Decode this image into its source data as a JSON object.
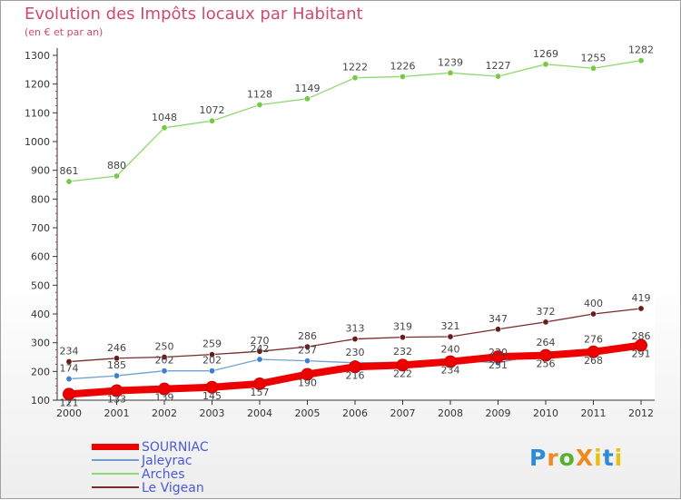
{
  "chart_data": {
    "type": "line",
    "title": "Evolution des Impôts locaux par Habitant",
    "subtitle": "(en € et par an)",
    "xlabel": "",
    "ylabel": "",
    "ylim": [
      100,
      1300
    ],
    "yticks": [
      100,
      200,
      300,
      400,
      500,
      600,
      700,
      800,
      900,
      1000,
      1100,
      1200,
      1300
    ],
    "grid": false,
    "legend_position": "bottom-left",
    "x": [
      "2000",
      "2001",
      "2002",
      "2003",
      "2004",
      "2005",
      "2006",
      "2007",
      "2008",
      "2009",
      "2010",
      "2011",
      "2012"
    ],
    "series": [
      {
        "name": "SOURNIAC",
        "color": "#ee0000",
        "marker": "#ee0000",
        "values": [
          121,
          133,
          139,
          145,
          157,
          190,
          216,
          222,
          234,
          251,
          256,
          268,
          291
        ]
      },
      {
        "name": "Jaleyrac",
        "color": "#6fa0d0",
        "marker": "#3f7fd0",
        "values": [
          174,
          185,
          202,
          202,
          242,
          237,
          230,
          232,
          240,
          230,
          264,
          276,
          286
        ]
      },
      {
        "name": "Arches",
        "color": "#90d870",
        "marker": "#78c848",
        "values": [
          861,
          880,
          1048,
          1072,
          1128,
          1149,
          1222,
          1226,
          1239,
          1227,
          1269,
          1255,
          1282
        ]
      },
      {
        "name": "Le Vigean",
        "color": "#7a2a2a",
        "marker": "#6a1a1a",
        "values": [
          234,
          246,
          250,
          259,
          270,
          286,
          313,
          319,
          321,
          347,
          372,
          400,
          419
        ]
      }
    ],
    "data_labels": [
      {
        "series": 0,
        "text": [
          "121",
          "133",
          "139",
          "145",
          "157",
          "190",
          "216",
          "222",
          "234",
          "251",
          "256",
          "268",
          "291"
        ]
      },
      {
        "series": 1,
        "text": [
          "174",
          "185",
          "202",
          "202",
          "242",
          "237",
          "230",
          "232",
          "240",
          "230",
          "264",
          "276",
          "286"
        ]
      },
      {
        "series": 2,
        "text": [
          "861",
          "880",
          "1048",
          "1072",
          "1128",
          "1149",
          "1222",
          "1226",
          "1239",
          "1227",
          "1269",
          "1255",
          "1282"
        ]
      },
      {
        "series": 3,
        "text": [
          "234",
          "246",
          "250",
          "259",
          "270",
          "286",
          "313",
          "319",
          "321",
          "347",
          "372",
          "400",
          "419"
        ]
      }
    ]
  },
  "logo": {
    "text": "ProXiti",
    "letters": [
      "P",
      "r",
      "o",
      "X",
      "i",
      "t",
      "i"
    ],
    "colors": [
      "#2e8bd6",
      "#f08a20",
      "#58b030",
      "#f08a20",
      "#e8c010",
      "#2e8bd6",
      "#e8c010"
    ]
  }
}
